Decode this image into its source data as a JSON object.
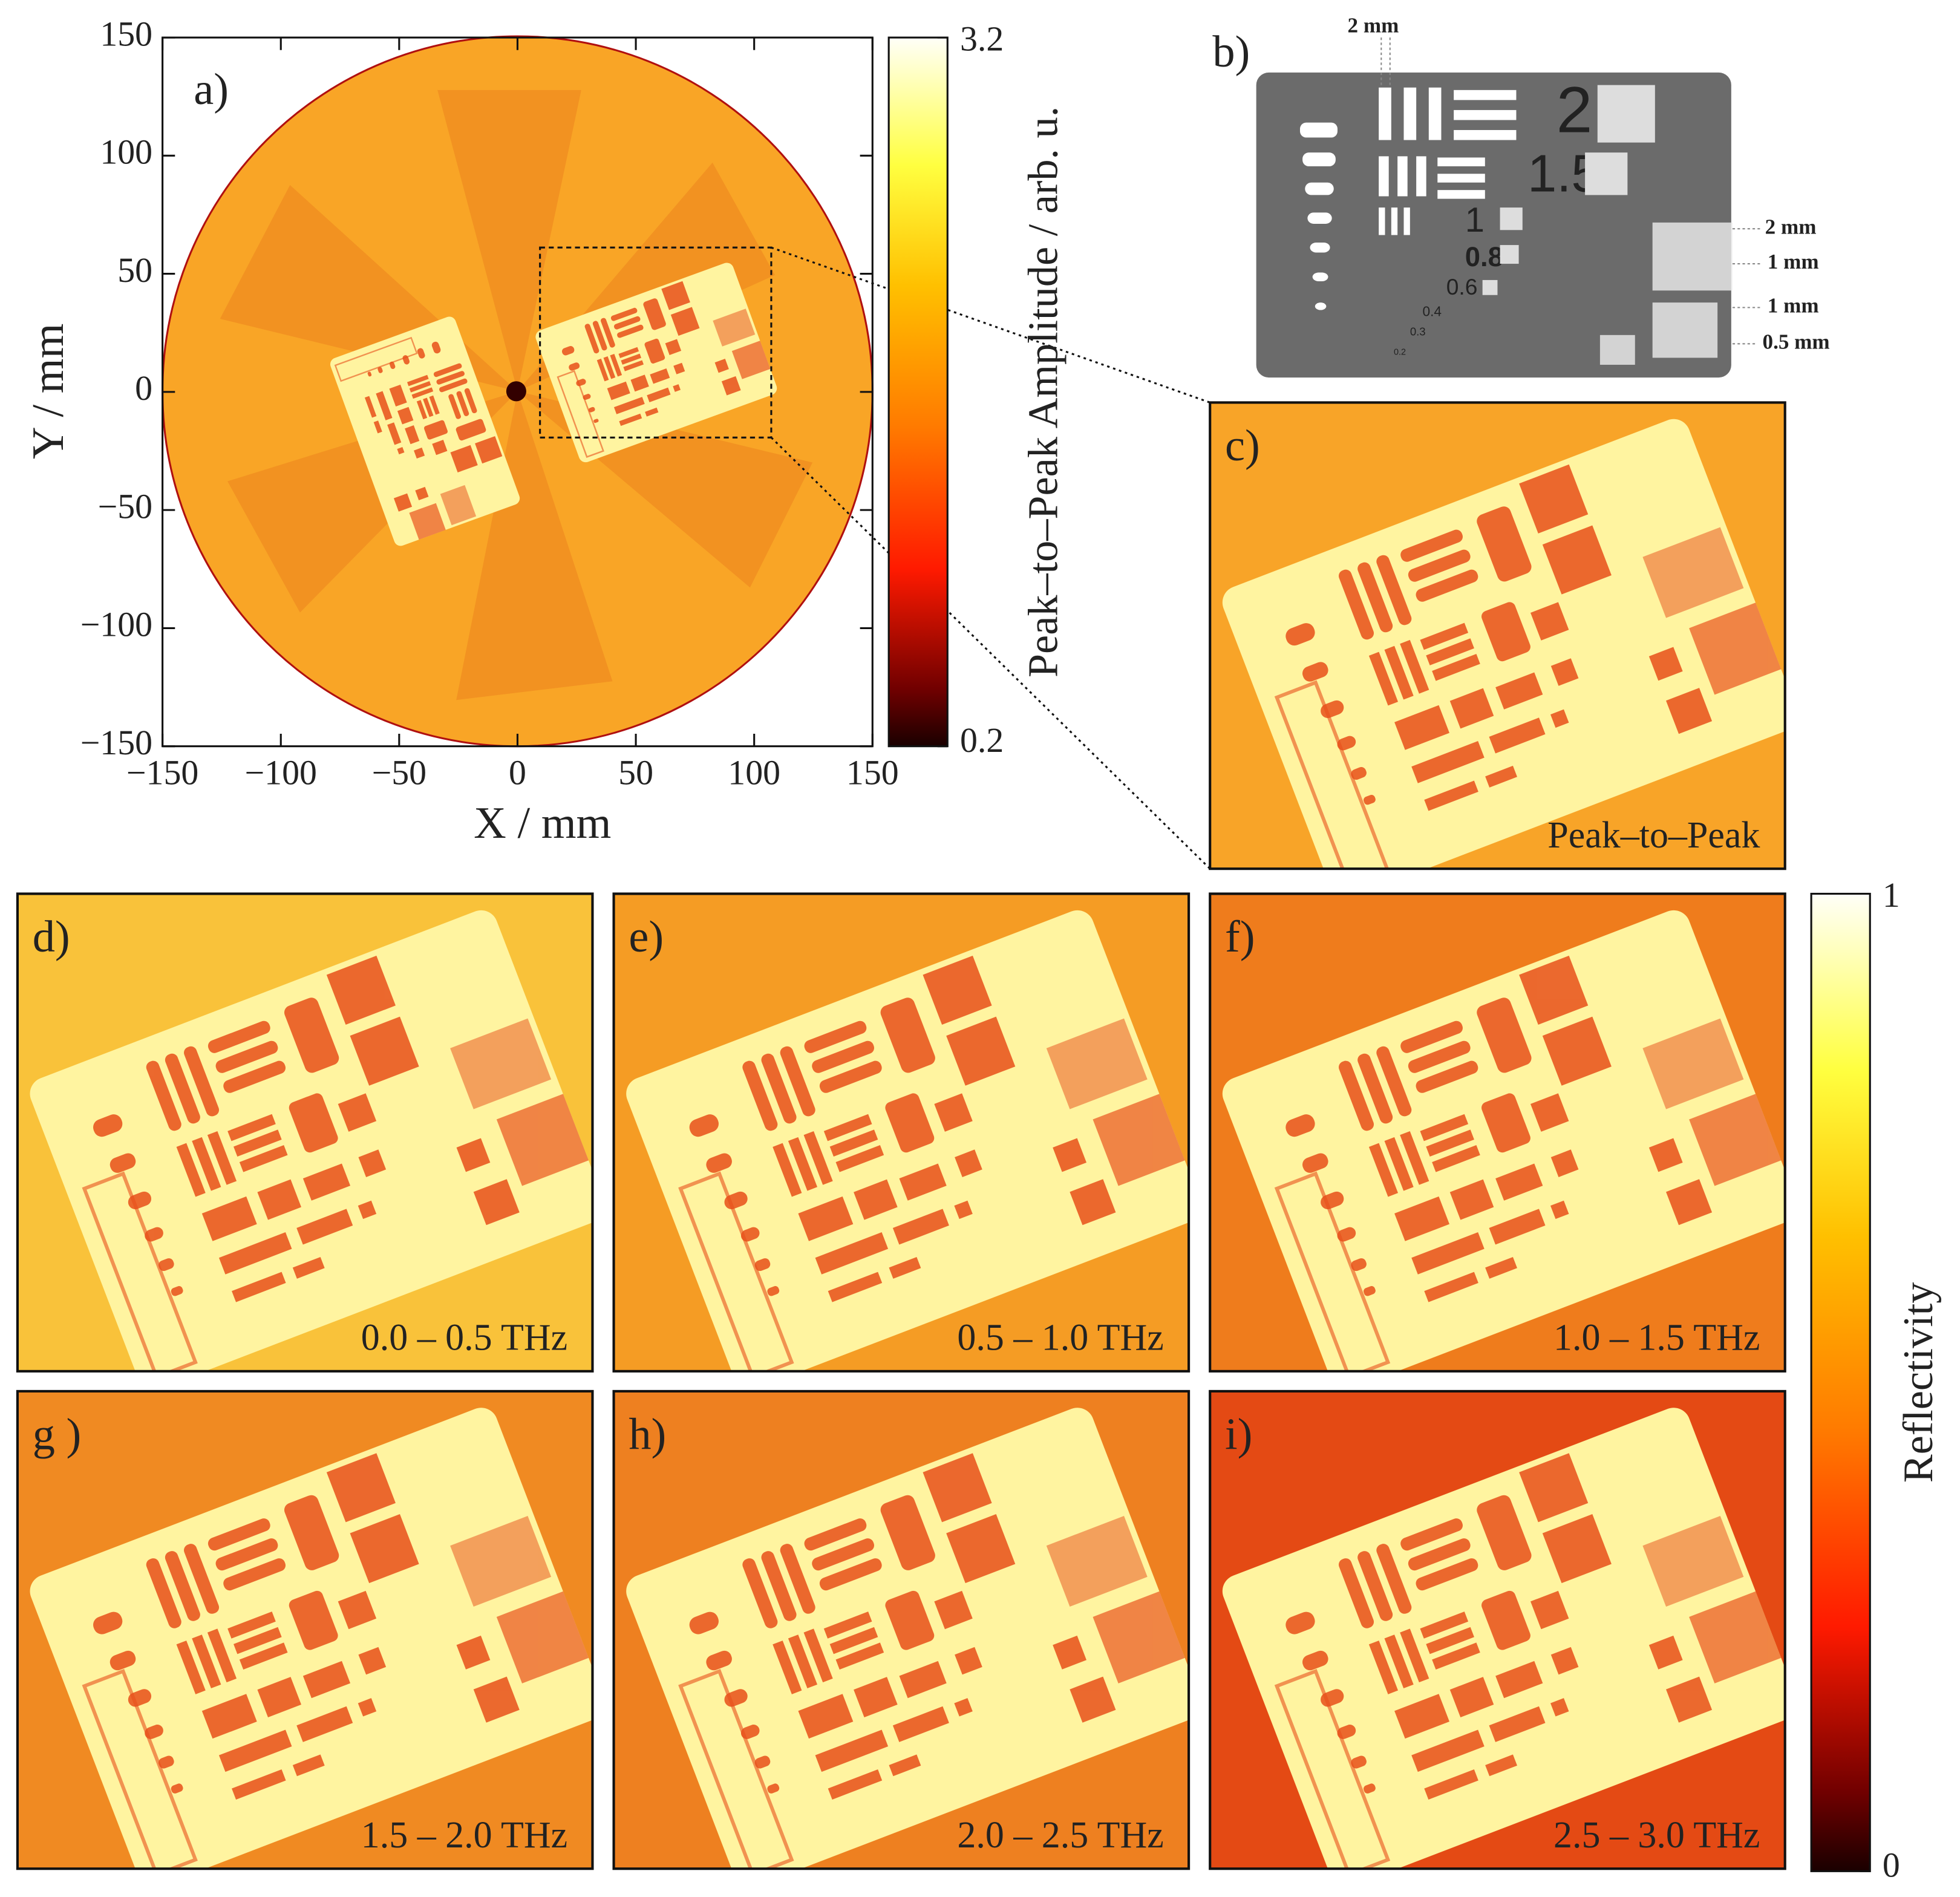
{
  "chart_data": [
    {
      "type": "heatmap",
      "panel_label": "a)",
      "x_label": "X / mm",
      "y_label": "Y / mm",
      "xlim": [
        -150,
        150
      ],
      "ylim": [
        -150,
        150
      ],
      "xticks": [
        {
          "value": -150,
          "label": "−150"
        },
        {
          "value": -100,
          "label": "−100"
        },
        {
          "value": -50,
          "label": "−50"
        },
        0,
        50,
        100,
        150
      ],
      "yticks": [
        {
          "value": -150,
          "label": "−150"
        },
        {
          "value": -100,
          "label": "−100"
        },
        {
          "value": -50,
          "label": "−50"
        },
        0,
        50,
        100,
        150
      ],
      "colorbar": {
        "label": "Peak–to–Peak Amplitude / arb. u.",
        "lim": [
          0.2,
          3.2
        ],
        "ticks": [
          0.2,
          3.2
        ]
      }
    },
    {
      "type": "image-grid",
      "panels": [
        {
          "label": "c)",
          "caption": "Peak–to–Peak"
        },
        {
          "label": "d)",
          "caption": "0.0 – 0.5 THz"
        },
        {
          "label": "e)",
          "caption": "0.5 – 1.0 THz"
        },
        {
          "label": "f)",
          "caption": "1.0 – 1.5 THz"
        },
        {
          "label": "g )",
          "caption": "1.5 – 2.0 THz"
        },
        {
          "label": "h)",
          "caption": "2.0 – 2.5 THz"
        },
        {
          "label": "i)",
          "caption": "2.5 – 3.0 THz"
        }
      ],
      "colorbar": {
        "label": "Reflectivity",
        "lim": [
          0,
          1
        ],
        "ticks": [
          0,
          1
        ]
      }
    }
  ],
  "target_diagram": {
    "label": "b)",
    "digits": [
      "2",
      "1.5",
      "1",
      "0.8",
      "0.6",
      "0.4",
      "0.3",
      "0.2"
    ],
    "scale_labels": [
      "2 mm",
      "2 mm",
      "1 mm",
      "1 mm",
      "0.5 mm"
    ]
  }
}
